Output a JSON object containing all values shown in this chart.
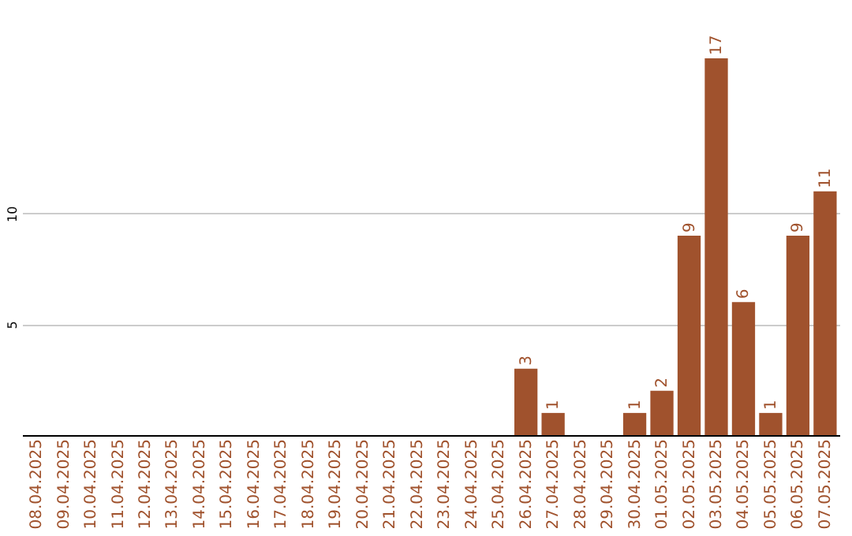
{
  "chart_data": {
    "type": "bar",
    "categories": [
      "08.04.2025",
      "09.04.2025",
      "10.04.2025",
      "11.04.2025",
      "12.04.2025",
      "13.04.2025",
      "14.04.2025",
      "15.04.2025",
      "16.04.2025",
      "17.04.2025",
      "18.04.2025",
      "19.04.2025",
      "20.04.2025",
      "21.04.2025",
      "22.04.2025",
      "23.04.2025",
      "24.04.2025",
      "25.04.2025",
      "26.04.2025",
      "27.04.2025",
      "28.04.2025",
      "29.04.2025",
      "30.04.2025",
      "01.05.2025",
      "02.05.2025",
      "03.05.2025",
      "04.05.2025",
      "05.05.2025",
      "06.05.2025",
      "07.05.2025"
    ],
    "values": [
      0,
      0,
      0,
      0,
      0,
      0,
      0,
      0,
      0,
      0,
      0,
      0,
      0,
      0,
      0,
      0,
      0,
      0,
      3,
      1,
      0,
      0,
      1,
      2,
      9,
      17,
      6,
      1,
      9,
      11
    ],
    "value_labels": [
      null,
      null,
      null,
      null,
      null,
      null,
      null,
      null,
      null,
      null,
      null,
      null,
      null,
      null,
      null,
      null,
      null,
      null,
      "3",
      "1",
      null,
      null,
      "1",
      "2",
      "9",
      "17",
      "6",
      "1",
      "9",
      "11"
    ],
    "color": "#a0522d",
    "ylim": [
      0,
      17
    ],
    "yticks": [
      5,
      10
    ],
    "grid": "y"
  }
}
